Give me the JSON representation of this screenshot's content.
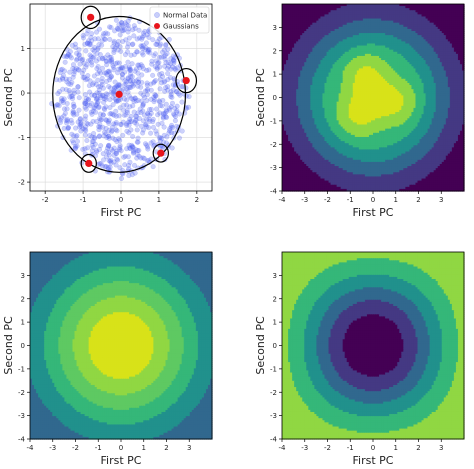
{
  "chart_data": [
    {
      "type": "scatter",
      "xlabel": "First PC",
      "ylabel": "Second PC",
      "xlim": [
        -2.4,
        2.4
      ],
      "ylim": [
        -2.2,
        2.0
      ],
      "xticks": [
        -2,
        -1,
        0,
        1,
        2
      ],
      "yticks": [
        -2,
        -1,
        0,
        1
      ],
      "grid": true,
      "legend": {
        "position": "top-right",
        "entries": [
          "Normal Data",
          "Gaussians"
        ]
      },
      "colors": {
        "normal": "#4a5cf0",
        "gaussian": "#e8141b",
        "circle": "#000000"
      },
      "normal_data": {
        "center": [
          0.0,
          -0.1
        ],
        "radius": 1.75,
        "count": 900
      },
      "gaussians": [
        {
          "x": -0.05,
          "y": -0.03,
          "ring_radius": 1.75
        },
        {
          "x": -0.8,
          "y": 1.7,
          "ring_radius": 0.25
        },
        {
          "x": 1.72,
          "y": 0.28,
          "ring_radius": 0.27
        },
        {
          "x": -0.85,
          "y": -1.58,
          "ring_radius": 0.2
        },
        {
          "x": 1.05,
          "y": -1.35,
          "ring_radius": 0.2
        }
      ]
    },
    {
      "type": "heatmap",
      "xlabel": "First PC",
      "ylabel": "Second PC",
      "xlim": [
        -4,
        4
      ],
      "ylim": [
        -4,
        4
      ],
      "xticks": [
        -4,
        -3,
        -2,
        -1,
        0,
        1,
        2,
        3
      ],
      "yticks": [
        -4,
        -3,
        -2,
        -1,
        0,
        1,
        2,
        3
      ],
      "field": "mixture",
      "levels": 7,
      "colormap": [
        "#440154",
        "#443983",
        "#31688e",
        "#21918c",
        "#35b779",
        "#90d743",
        "#d8e219"
      ]
    },
    {
      "type": "heatmap",
      "xlabel": "First PC",
      "ylabel": "Second PC",
      "xlim": [
        -4,
        4
      ],
      "ylim": [
        -4,
        4
      ],
      "xticks": [
        -4,
        -3,
        -2,
        -1,
        0,
        1,
        2,
        3
      ],
      "yticks": [
        -4,
        -3,
        -2,
        -1,
        0,
        1,
        2,
        3
      ],
      "field": "gaussian",
      "levels": 6,
      "colormap": [
        "#31688e",
        "#21918c",
        "#35b779",
        "#5ec962",
        "#90d743",
        "#d8e219"
      ]
    },
    {
      "type": "heatmap",
      "xlabel": "First PC",
      "ylabel": "Second PC",
      "xlim": [
        -4,
        4
      ],
      "ylim": [
        -4,
        4
      ],
      "xticks": [
        -4,
        -3,
        -2,
        -1,
        0,
        1,
        2,
        3
      ],
      "yticks": [
        -4,
        -3,
        -2,
        -1,
        0,
        1,
        2,
        3
      ],
      "field": "ratio",
      "levels": 6,
      "colormap": [
        "#440154",
        "#443983",
        "#31688e",
        "#21918c",
        "#35b779",
        "#90d743"
      ]
    }
  ]
}
